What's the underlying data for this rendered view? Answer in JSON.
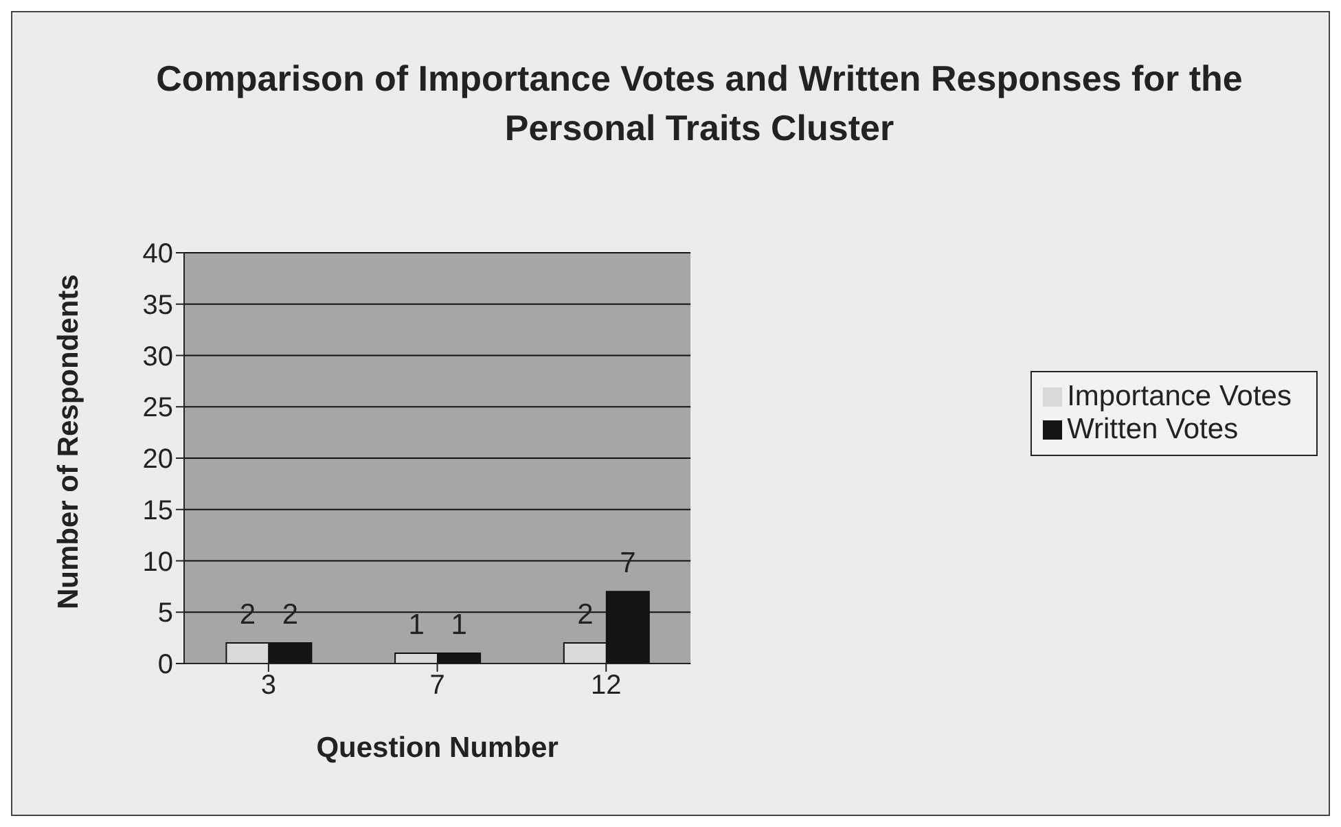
{
  "chart_data": {
    "type": "bar",
    "title": "Comparison of Importance Votes and Written Responses for the Personal Traits Cluster",
    "xlabel": "Question Number",
    "ylabel": "Number of Respondents",
    "categories": [
      "3",
      "7",
      "12"
    ],
    "series": [
      {
        "name": "Importance Votes",
        "color": "#d9d9d9",
        "values": [
          2,
          1,
          2
        ]
      },
      {
        "name": "Written Votes",
        "color": "#141414",
        "values": [
          2,
          1,
          7
        ]
      }
    ],
    "ylim": [
      0,
      40
    ],
    "yticks": [
      0,
      5,
      10,
      15,
      20,
      25,
      30,
      35,
      40
    ],
    "grid": "y",
    "legend": "right",
    "data_labels": true
  }
}
